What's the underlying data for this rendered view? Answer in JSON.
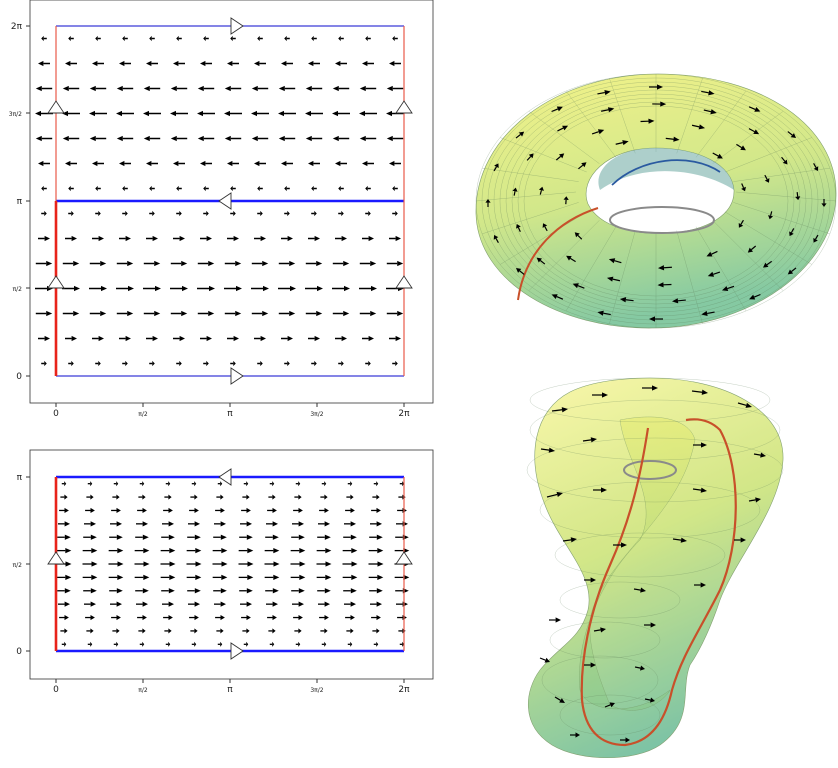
{
  "top_plot": {
    "x_ticks": [
      "0",
      "π/2",
      "π",
      "3π/2",
      "2π"
    ],
    "y_ticks": [
      "0",
      "π/2",
      "π",
      "3π/2",
      "2π"
    ]
  },
  "bottom_plot": {
    "x_ticks": [
      "0",
      "π/2",
      "π",
      "3π/2",
      "2π"
    ],
    "y_ticks": [
      "0",
      "π/2",
      "π"
    ]
  },
  "colors": {
    "edge_blue": "#1a1aff",
    "edge_red": "#e8231a",
    "arrow": "#000000",
    "surface_light": "#eef07a",
    "surface_mid": "#c8e384",
    "surface_dark": "#7cc7a0",
    "curve_red": "#c8502a",
    "curve_gray": "#8a8a8a",
    "curve_blue": "#2a5aa0"
  }
}
